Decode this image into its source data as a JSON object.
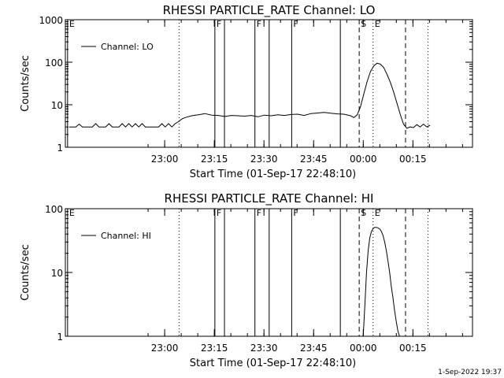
{
  "chart_data": [
    {
      "type": "line",
      "title": "RHESSI  PARTICLE_RATE  Channel:  LO",
      "xlabel": "Start Time (01-Sep-17 22:48:10)",
      "ylabel": "Counts/sec",
      "yscale": "log",
      "ylim": [
        1,
        1000
      ],
      "yticks": [
        1,
        10,
        100,
        1000
      ],
      "ytick_labels": [
        "1",
        "10",
        "100",
        "1000"
      ],
      "xlim": [
        -18.17,
        104.83
      ],
      "xticks": [
        11.83,
        26.83,
        41.83,
        56.83,
        71.83,
        86.83
      ],
      "xtick_labels": [
        "23:00",
        "23:15",
        "23:30",
        "23:45",
        "00:00",
        "00:15"
      ],
      "grid": false,
      "legend": {
        "position": "top-left",
        "entries": [
          {
            "label": "Channel: LO"
          }
        ]
      },
      "markers": [
        {
          "x": -17.5,
          "style": "solid",
          "label": "E"
        },
        {
          "x": 27.0,
          "style": "solid",
          "label": "F"
        },
        {
          "x": 29.9,
          "style": "solid",
          "label": ""
        },
        {
          "x": 39.1,
          "style": "solid",
          "label": "F"
        },
        {
          "x": 43.4,
          "style": "solid",
          "label": ""
        },
        {
          "x": 50.2,
          "style": "solid",
          "label": "F"
        },
        {
          "x": 64.9,
          "style": "solid",
          "label": ""
        },
        {
          "x": 16.2,
          "style": "dotted",
          "label": ""
        },
        {
          "x": 70.6,
          "style": "dashed",
          "label": "S"
        },
        {
          "x": 74.8,
          "style": "dotted",
          "label": "E"
        },
        {
          "x": 84.6,
          "style": "dashed",
          "label": ""
        },
        {
          "x": 91.4,
          "style": "dotted",
          "label": ""
        }
      ],
      "series": [
        {
          "x": [
            -17,
            -15,
            -14,
            -13,
            -12,
            -11,
            -10,
            -9,
            -8,
            -7,
            -6,
            -5,
            -4,
            -3,
            -2,
            -1,
            0,
            1,
            2,
            3,
            4,
            5,
            6,
            7,
            8,
            9,
            10,
            11,
            12,
            13,
            14,
            15,
            16,
            17,
            18,
            20,
            22,
            24,
            26,
            28,
            30,
            32,
            34,
            36,
            38,
            40,
            42,
            44,
            46,
            48,
            50,
            52,
            54,
            56,
            58,
            60,
            62,
            64,
            66,
            68,
            69,
            70,
            71,
            72,
            73,
            74,
            75,
            76,
            77,
            78,
            79,
            80,
            81,
            82,
            83,
            84,
            85,
            86,
            87,
            88,
            89,
            90,
            91,
            92
          ],
          "y": [
            3.0,
            3.0,
            3.5,
            3.0,
            3.0,
            3.0,
            3.0,
            3.6,
            3.0,
            3.0,
            3.0,
            3.6,
            3.0,
            3.0,
            3.0,
            3.6,
            3.0,
            3.6,
            3.0,
            3.6,
            3.0,
            3.6,
            3.0,
            3.0,
            3.0,
            3.0,
            3.0,
            3.6,
            3.0,
            3.6,
            3.0,
            3.6,
            4.0,
            4.6,
            5.0,
            5.5,
            5.8,
            6.2,
            5.7,
            5.6,
            5.3,
            5.6,
            5.5,
            5.4,
            5.6,
            5.2,
            5.7,
            5.5,
            5.8,
            5.6,
            5.9,
            6.0,
            5.6,
            6.2,
            6.4,
            6.6,
            6.3,
            6.1,
            6.0,
            5.5,
            5.0,
            5.8,
            9.0,
            18.0,
            35.0,
            60.0,
            82.0,
            95.0,
            90.0,
            75.0,
            52.0,
            34.0,
            20.0,
            11.0,
            6.0,
            3.5,
            2.8,
            3.0,
            2.9,
            3.4,
            3.0,
            3.5,
            3.0,
            3.3
          ]
        }
      ]
    },
    {
      "type": "line",
      "title": "RHESSI  PARTICLE_RATE  Channel:  HI",
      "xlabel": "Start Time (01-Sep-17 22:48:10)",
      "ylabel": "Counts/sec",
      "yscale": "log",
      "ylim": [
        1,
        100
      ],
      "yticks": [
        1,
        10,
        100
      ],
      "ytick_labels": [
        "1",
        "10",
        "100"
      ],
      "xlim": [
        -18.17,
        104.83
      ],
      "xticks": [
        11.83,
        26.83,
        41.83,
        56.83,
        71.83,
        86.83
      ],
      "xtick_labels": [
        "23:00",
        "23:15",
        "23:30",
        "23:45",
        "00:00",
        "00:15"
      ],
      "grid": false,
      "legend": {
        "position": "top-left",
        "entries": [
          {
            "label": "Channel: HI"
          }
        ]
      },
      "markers": [
        {
          "x": -17.5,
          "style": "solid",
          "label": "E"
        },
        {
          "x": 27.0,
          "style": "solid",
          "label": "F"
        },
        {
          "x": 29.9,
          "style": "solid",
          "label": ""
        },
        {
          "x": 39.1,
          "style": "solid",
          "label": "F"
        },
        {
          "x": 43.4,
          "style": "solid",
          "label": ""
        },
        {
          "x": 50.2,
          "style": "solid",
          "label": "F"
        },
        {
          "x": 64.9,
          "style": "solid",
          "label": ""
        },
        {
          "x": 16.2,
          "style": "dotted",
          "label": ""
        },
        {
          "x": 70.6,
          "style": "dashed",
          "label": "S"
        },
        {
          "x": 74.8,
          "style": "dotted",
          "label": "E"
        },
        {
          "x": 84.6,
          "style": "dashed",
          "label": ""
        },
        {
          "x": 91.4,
          "style": "dotted",
          "label": ""
        }
      ],
      "series": [
        {
          "x": [
            71.8,
            72.3,
            72.8,
            73.3,
            73.8,
            74.3,
            74.8,
            75.3,
            75.8,
            76.3,
            76.8,
            77.3,
            77.8,
            78.3,
            78.8,
            79.3,
            79.8,
            80.3,
            80.8,
            81.3,
            81.8,
            82.3,
            82.8
          ],
          "y": [
            1,
            3,
            10,
            22,
            35,
            44,
            49,
            51,
            51,
            50,
            48,
            44,
            38,
            30,
            22,
            15,
            10,
            6,
            4,
            2.5,
            1.7,
            1.2,
            1
          ]
        }
      ]
    }
  ],
  "footer": {
    "timestamp": "1-Sep-2022 19:37"
  }
}
